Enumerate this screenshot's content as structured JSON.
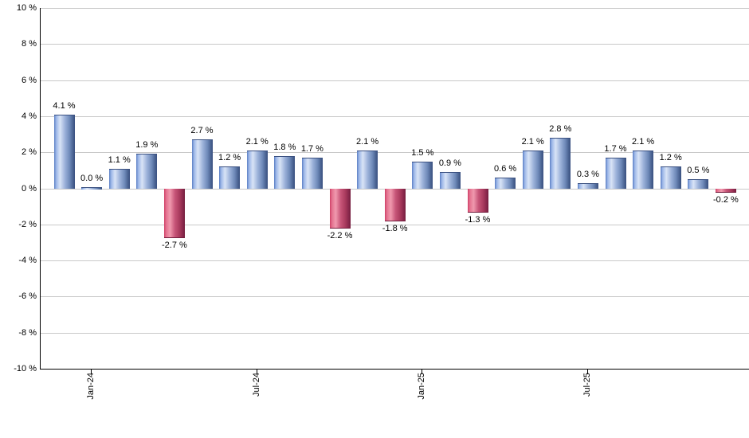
{
  "chart_data": {
    "type": "bar",
    "title": "",
    "xlabel": "",
    "ylabel": "",
    "ylim": [
      -10,
      10
    ],
    "grid": true,
    "legend": false,
    "values": [
      4.1,
      0.0,
      1.1,
      1.9,
      -2.7,
      2.7,
      1.2,
      2.1,
      1.8,
      1.7,
      -2.2,
      2.1,
      -1.8,
      1.5,
      0.9,
      -1.3,
      0.6,
      2.1,
      2.8,
      0.3,
      1.7,
      2.1,
      1.2,
      0.5,
      -0.2
    ],
    "bar_labels": [
      "4.1 %",
      "0.0 %",
      "1.1 %",
      "1.9 %",
      "-2.7 %",
      "2.7 %",
      "1.2 %",
      "2.1 %",
      "1.8 %",
      "1.7 %",
      "-2.2 %",
      "2.1 %",
      "-1.8 %",
      "1.5 %",
      "0.9 %",
      "-1.3 %",
      "0.6 %",
      "2.1 %",
      "2.8 %",
      "0.3 %",
      "1.7 %",
      "2.1 %",
      "1.2 %",
      "0.5 %",
      "-0.2 %"
    ],
    "y_axis": {
      "ticks": [
        {
          "label": "10 %",
          "value": 10
        },
        {
          "label": "8 %",
          "value": 8
        },
        {
          "label": "6 %",
          "value": 6
        },
        {
          "label": "4 %",
          "value": 4
        },
        {
          "label": "2 %",
          "value": 2
        },
        {
          "label": "0 %",
          "value": 0
        },
        {
          "label": "-2 %",
          "value": -2
        },
        {
          "label": "-4 %",
          "value": -4
        },
        {
          "label": "-6 %",
          "value": -6
        },
        {
          "label": "-8 %",
          "value": -8
        },
        {
          "label": "-10 %",
          "value": -10
        }
      ],
      "gridline_values": [
        10,
        8,
        6,
        4,
        2,
        0,
        -2,
        -4,
        -6,
        -8
      ]
    },
    "x_axis": {
      "ticks": [
        {
          "label": "Jan-24",
          "bar_index": 1
        },
        {
          "label": "Jul-24",
          "bar_index": 7
        },
        {
          "label": "Jan-25",
          "bar_index": 13
        },
        {
          "label": "Jul-25",
          "bar_index": 19
        }
      ]
    },
    "colors": {
      "positive_bar": "#7ba1dd",
      "negative_bar": "#c04a6b",
      "gridline": "#c9c9c9",
      "axis": "#000000",
      "label_text": "#000000"
    }
  }
}
